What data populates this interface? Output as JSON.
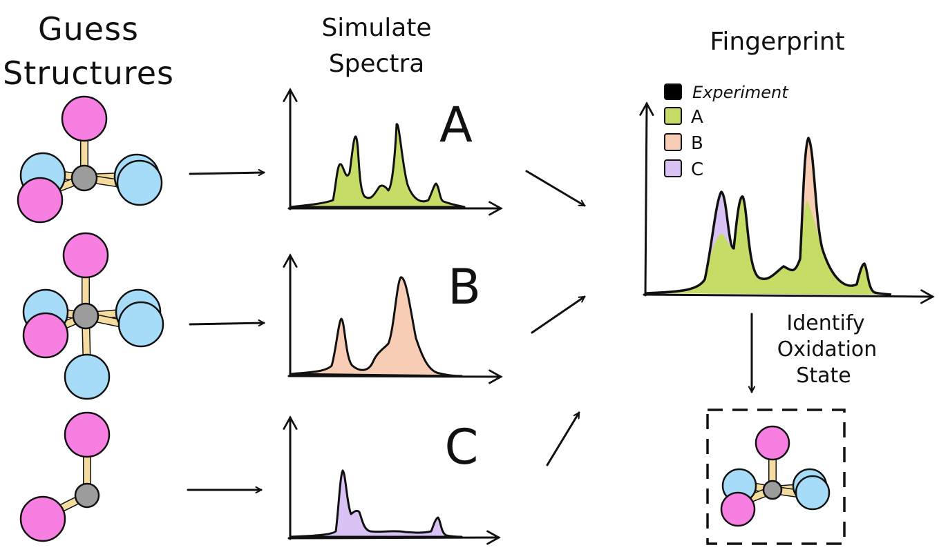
{
  "headings": {
    "guess_line1": "Guess",
    "guess_line2": "Structures",
    "simulate_line1": "Simulate",
    "simulate_line2": "Spectra",
    "fingerprint": "Fingerprint"
  },
  "spectra_labels": {
    "a": "A",
    "b": "B",
    "c": "C"
  },
  "legend": {
    "experiment": "Experiment",
    "a": "A",
    "b": "B",
    "c": "C"
  },
  "identify": {
    "line1": "Identify",
    "line2": "Oxidation",
    "line3": "State"
  },
  "colors": {
    "ligand_pink": "#f77fe2",
    "ligand_blue": "#a6dcf7",
    "metal_grey": "#9c9c9c",
    "bond": "#f3dc9e",
    "spectrum_a": "#c5dc67",
    "spectrum_b": "#f8cdb5",
    "spectrum_c": "#d9c3f4",
    "experiment": "#000000"
  }
}
